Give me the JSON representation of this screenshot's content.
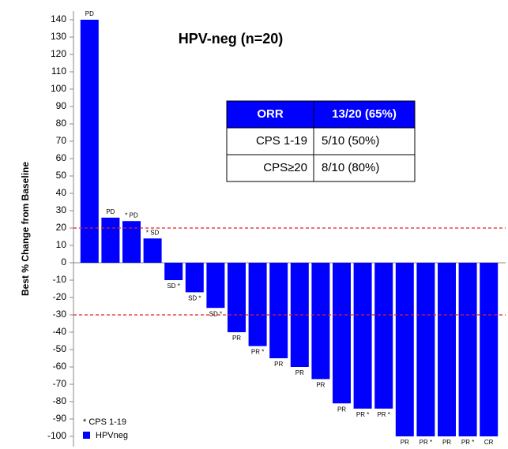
{
  "chart_data": {
    "type": "bar",
    "title": "HPV-neg (n=20)",
    "y_label": "Best % Change from Baseline",
    "categories": [
      null,
      null,
      null,
      null,
      null,
      null,
      null,
      null,
      null,
      null,
      null,
      null,
      null,
      null,
      null,
      null,
      null,
      null,
      null,
      null
    ],
    "series": [
      {
        "name": "HPVneg",
        "color": "#0000ff",
        "values": [
          140,
          26,
          24,
          14,
          -10,
          -17,
          -26,
          -40,
          -48,
          -55,
          -60,
          -67,
          -81,
          -84,
          -84,
          -100,
          -100,
          -100,
          -100,
          -100
        ],
        "bar_labels": [
          "PD",
          "PD",
          "* PD",
          "* SD",
          "SD *",
          "SD *",
          "SD *",
          "PR",
          "PR *",
          "PR",
          "PR",
          "PR",
          "PR",
          "PR *",
          "PR *",
          "PR",
          "PR *",
          "PR",
          "PR *",
          "CR"
        ]
      }
    ],
    "note": "* CPS 1-19",
    "ylim": [
      -105,
      145
    ],
    "yticks": [
      -100,
      -90,
      -80,
      -70,
      -60,
      -50,
      -40,
      -30,
      -20,
      -10,
      0,
      10,
      20,
      30,
      40,
      50,
      60,
      70,
      80,
      90,
      100,
      110,
      120,
      130,
      140
    ],
    "reference_lines": [
      20,
      -30
    ],
    "reference_color": "#e02020",
    "table": {
      "header": [
        "ORR",
        "13/20 (65%)"
      ],
      "rows": [
        [
          "CPS 1-19",
          "5/10 (50%)"
        ],
        [
          "CPS≥20",
          "8/10 (80%)"
        ]
      ]
    }
  }
}
